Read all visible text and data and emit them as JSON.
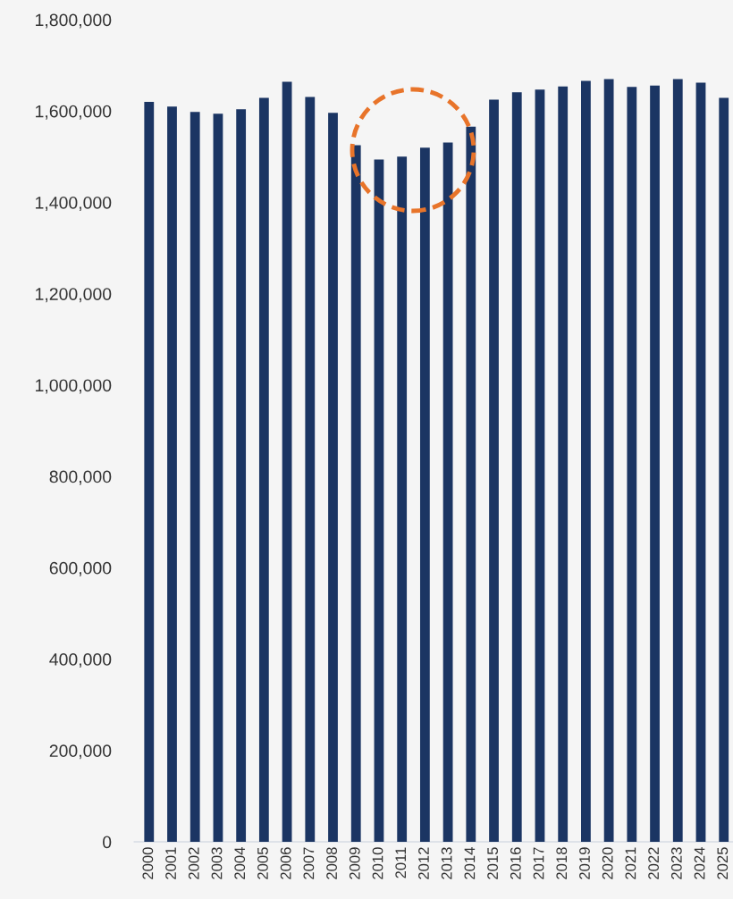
{
  "chart_data": {
    "type": "bar",
    "categories": [
      "2000",
      "2001",
      "2002",
      "2003",
      "2004",
      "2005",
      "2006",
      "2007",
      "2008",
      "2009",
      "2010",
      "2011",
      "2012",
      "2013",
      "2014",
      "2015",
      "2016",
      "2017",
      "2018",
      "2019",
      "2020",
      "2021",
      "2022",
      "2023",
      "2024",
      "2025"
    ],
    "values": [
      1620000,
      1610000,
      1598000,
      1594000,
      1604000,
      1629000,
      1664000,
      1631000,
      1596000,
      1525000,
      1494000,
      1500000,
      1520000,
      1531000,
      1566000,
      1625000,
      1641000,
      1647000,
      1654000,
      1666000,
      1670000,
      1653000,
      1656000,
      1670000,
      1662000,
      1629000
    ],
    "color": "#1b3563",
    "ylim": [
      0,
      1800000
    ],
    "yticks": [
      {
        "value": 0,
        "label": "0"
      },
      {
        "value": 200000,
        "label": "200,000"
      },
      {
        "value": 400000,
        "label": "400,000"
      },
      {
        "value": 600000,
        "label": "600,000"
      },
      {
        "value": 800000,
        "label": "800,000"
      },
      {
        "value": 1000000,
        "label": "1,000,000"
      },
      {
        "value": 1200000,
        "label": "1,200,000"
      },
      {
        "value": 1400000,
        "label": "1,400,000"
      },
      {
        "value": 1600000,
        "label": "1,600,000"
      },
      {
        "value": 1800000,
        "label": "1,800,000"
      }
    ],
    "grid": false,
    "legend": false
  }
}
